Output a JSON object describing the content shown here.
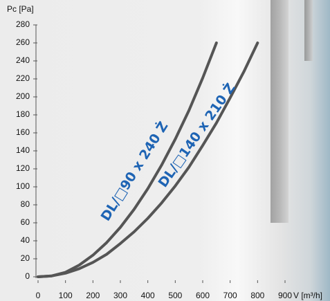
{
  "chart_data": {
    "type": "line",
    "ylabel": "Pc [Pa]",
    "xlabel": "V [m³/h]",
    "x": [
      0,
      50,
      100,
      150,
      200,
      250,
      300,
      350,
      400,
      450,
      500,
      550,
      600,
      650,
      700,
      750,
      800
    ],
    "series": [
      {
        "name": "DL/□90 x 240 Ż",
        "color": "#555555",
        "values": [
          0,
          1,
          5,
          13,
          24,
          38,
          55,
          75,
          98,
          124,
          153,
          185,
          221,
          260,
          null,
          null,
          null
        ]
      },
      {
        "name": "DL/□140 x 210 Ż",
        "color": "#555555",
        "values": [
          0,
          1,
          4,
          9,
          16,
          25,
          37,
          50,
          65,
          82,
          101,
          122,
          146,
          171,
          199,
          228,
          260
        ]
      }
    ],
    "xlim": [
      0,
      900
    ],
    "xticks": [
      0,
      100,
      200,
      300,
      400,
      500,
      600,
      700,
      800,
      900
    ],
    "ylim": [
      0,
      280
    ],
    "yticks": [
      0,
      20,
      40,
      60,
      80,
      100,
      120,
      140,
      160,
      180,
      200,
      220,
      240,
      260,
      280
    ],
    "legend": false
  }
}
